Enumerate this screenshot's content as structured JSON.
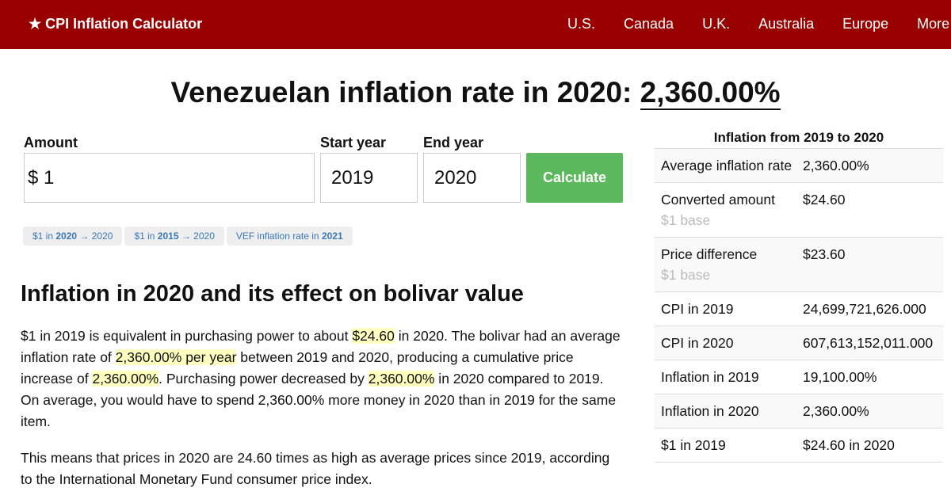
{
  "nav": {
    "brand": "★ CPI Inflation Calculator",
    "links": [
      "U.S.",
      "Canada",
      "U.K.",
      "Australia",
      "Europe",
      "More"
    ]
  },
  "title": {
    "prefix": "Venezuelan inflation rate in 2020: ",
    "rate": "2,360.00%"
  },
  "form": {
    "amount_label": "Amount",
    "amount_value": "$ 1",
    "start_label": "Start year",
    "start_value": "2019",
    "end_label": "End year",
    "end_value": "2020",
    "calculate": "Calculate"
  },
  "chips": [
    {
      "a": "$1 in ",
      "b": "2020",
      "c": " → 2020"
    },
    {
      "a": "$1 in ",
      "b": "2015",
      "c": " → 2020"
    },
    {
      "a": "VEF inflation rate in ",
      "b": "2021",
      "c": ""
    }
  ],
  "heading": "Inflation in 2020 and its effect on bolivar value",
  "para1": [
    "$1 in 2019 is equivalent in purchasing power to about ",
    "$24.60",
    " in 2020. The bolivar had an average inflation rate of ",
    "2,360.00% per year",
    " between 2019 and 2020, producing a cumulative price increase of ",
    "2,360.00%",
    ". Purchasing power decreased by ",
    "2,360.00%",
    " in 2020 compared to 2019. On average, you would have to spend 2,360.00% more money in 2020 than in 2019 for the same item."
  ],
  "para2": "This means that prices in 2020 are 24.60 times as high as average prices since 2019, according to the International Monetary Fund consumer price index.",
  "side": {
    "title": "Inflation from 2019 to 2020",
    "rows": [
      {
        "k": "Average inflation rate",
        "sub": "",
        "v": "2,360.00%"
      },
      {
        "k": "Converted amount",
        "sub": "$1 base",
        "v": "$24.60"
      },
      {
        "k": "Price difference",
        "sub": "$1 base",
        "v": "$23.60"
      },
      {
        "k": "CPI in 2019",
        "sub": "",
        "v": "24,699,721,626.000"
      },
      {
        "k": "CPI in 2020",
        "sub": "",
        "v": "607,613,152,011.000"
      },
      {
        "k": "Inflation in 2019",
        "sub": "",
        "v": "19,100.00%"
      },
      {
        "k": "Inflation in 2020",
        "sub": "",
        "v": "2,360.00%"
      },
      {
        "k": "$1 in 2019",
        "sub": "",
        "v": "$24.60 in 2020"
      }
    ]
  }
}
